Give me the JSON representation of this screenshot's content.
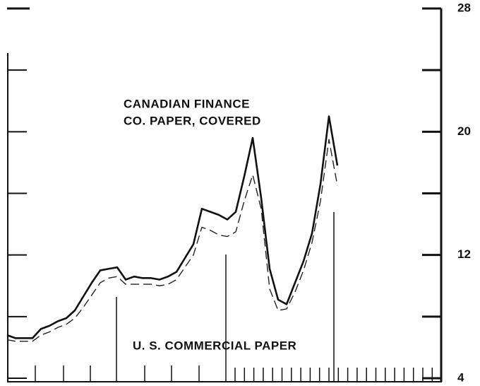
{
  "chart_data": {
    "type": "line",
    "annotations": [
      {
        "lines": [
          "CANADIAN FINANCE",
          "CO. PAPER, COVERED"
        ]
      },
      {
        "lines": [
          "U. S. COMMERCIAL PAPER"
        ]
      }
    ],
    "series": [
      {
        "color": "#111111",
        "dash": false,
        "values": [
          6.8,
          6.6,
          6.6,
          6.6,
          7.2,
          7.4,
          7.7,
          7.9,
          8.4,
          9.3,
          10.2,
          11.0,
          11.1,
          11.2,
          10.4,
          10.6,
          10.5,
          10.5,
          10.4,
          10.6,
          10.9,
          11.8,
          12.7,
          15.0,
          14.8,
          14.6,
          14.3,
          14.8,
          17.1,
          19.6,
          15.7,
          11.1,
          9.1,
          8.8,
          10.2,
          11.6,
          13.4,
          16.6,
          21.0,
          17.8
        ]
      },
      {
        "color": "#222222",
        "dash": true,
        "values": [
          6.5,
          6.4,
          6.4,
          6.4,
          6.8,
          7.0,
          7.3,
          7.5,
          7.9,
          8.6,
          9.4,
          10.2,
          10.5,
          10.6,
          10.1,
          10.1,
          10.1,
          10.1,
          10.0,
          10.1,
          10.4,
          11.2,
          12.0,
          13.8,
          13.6,
          13.3,
          13.2,
          13.5,
          15.5,
          17.2,
          15.0,
          9.8,
          8.4,
          8.5,
          9.6,
          11.0,
          12.8,
          15.5,
          19.5,
          16.5
        ]
      }
    ],
    "ylim": [
      4,
      28
    ],
    "yticks": [
      4,
      12,
      20,
      28
    ],
    "minor_yticks": [
      8,
      16,
      24
    ]
  }
}
